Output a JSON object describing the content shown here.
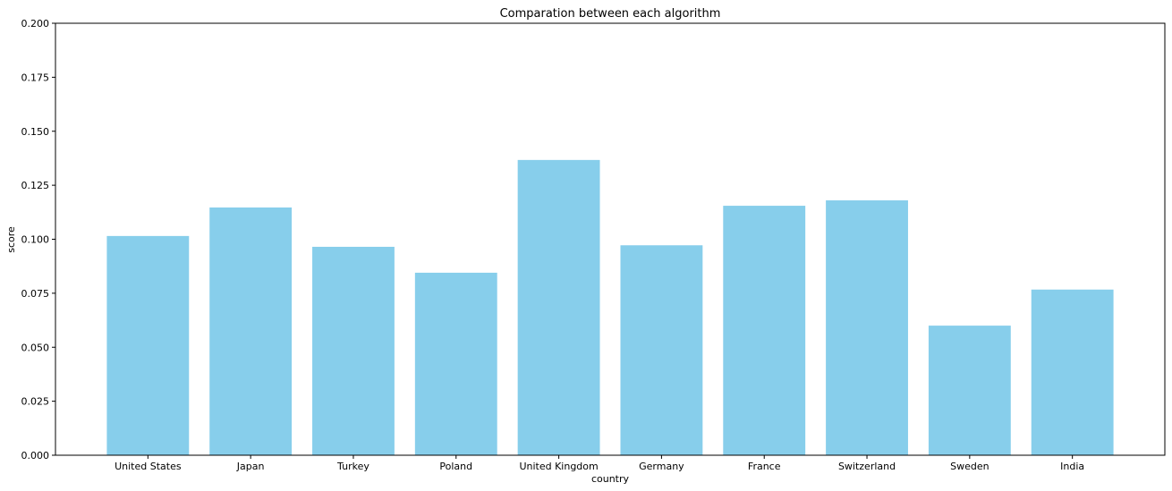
{
  "chart_data": {
    "type": "bar",
    "title": "Comparation between each algorithm",
    "xlabel": "country",
    "ylabel": "score",
    "categories": [
      "United States",
      "Japan",
      "Turkey",
      "Poland",
      "United Kingdom",
      "Germany",
      "France",
      "Switzerland",
      "Sweden",
      "India"
    ],
    "values": [
      0.1015,
      0.1147,
      0.0965,
      0.0845,
      0.1367,
      0.0972,
      0.1155,
      0.118,
      0.06,
      0.0767
    ],
    "ylim": [
      0,
      0.2
    ],
    "yticks": [
      "0.000",
      "0.025",
      "0.050",
      "0.075",
      "0.100",
      "0.125",
      "0.150",
      "0.175",
      "0.200"
    ],
    "grid": false,
    "legend": "none",
    "bar_color": "#87ceeb"
  }
}
